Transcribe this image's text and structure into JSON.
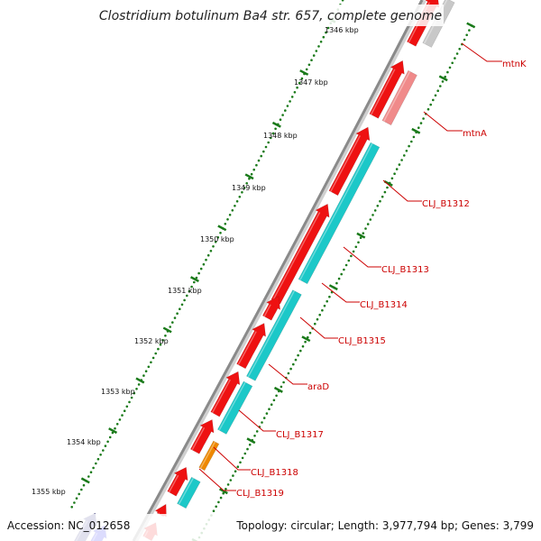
{
  "title": "Clostridium botulinum Ba4 str. 657, complete genome",
  "footer": {
    "accession": "Accession: NC_012658",
    "summary": "Topology: circular; Length: 3,977,794 bp; Genes: 3,799"
  },
  "colors": {
    "backbone": "#8a8a8a",
    "tick": "#1a7a1a",
    "label": "#cc0000",
    "cds": "#ee1111",
    "gene_cyan": "#1cc8c8",
    "gene_pink": "#f08a8a",
    "gene_gray": "#c8c8c8",
    "gene_orange": "#ee8800",
    "gene_navy": "#3a3a8a",
    "gene_blue": "#1a1aee"
  },
  "ticks": [
    "1346 kbp",
    "1347 kbp",
    "1348 kbp",
    "1349 kbp",
    "1350 kbp",
    "1351 kbp",
    "1352 kbp",
    "1353 kbp",
    "1354 kbp",
    "1355 kbp"
  ],
  "genes": [
    "mtnK",
    "mtnA",
    "CLJ_B1312",
    "CLJ_B1313",
    "CLJ_B1314",
    "CLJ_B1315",
    "araD",
    "CLJ_B1317",
    "CLJ_B1318",
    "CLJ_B1319"
  ]
}
